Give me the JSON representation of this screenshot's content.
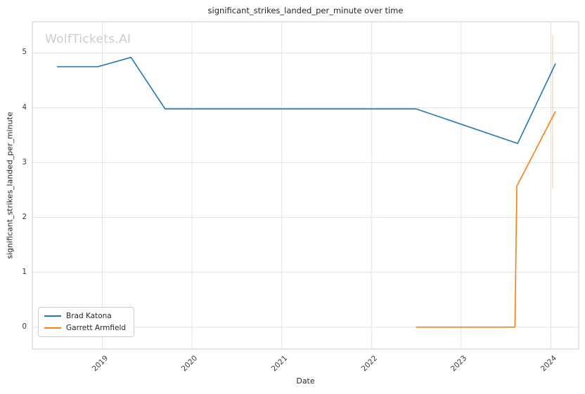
{
  "watermark": "WolfTickets.AI",
  "chart_data": {
    "type": "line",
    "title": "significant_strikes_landed_per_minute over time",
    "xlabel": "Date",
    "ylabel": "significant_strikes_landed_per_minute",
    "x_ticks": [
      2019,
      2020,
      2021,
      2022,
      2023,
      2024
    ],
    "y_ticks": [
      0,
      1,
      2,
      3,
      4,
      5
    ],
    "xlim": [
      2018.22,
      2024.31
    ],
    "ylim": [
      -0.4,
      5.57
    ],
    "grid": true,
    "legend_position": "lower left",
    "colors": {
      "grid": "#e3e3e3",
      "border": "#cccccc"
    },
    "series": [
      {
        "name": "Brad Katona",
        "color": "#1f77b4",
        "points": [
          [
            2018.5,
            4.75
          ],
          [
            2018.95,
            4.75
          ],
          [
            2019.32,
            4.92
          ],
          [
            2019.7,
            3.98
          ],
          [
            2022.5,
            3.98
          ],
          [
            2023.63,
            3.35
          ],
          [
            2024.05,
            4.8
          ]
        ]
      },
      {
        "name": "Garrett Armfield",
        "color": "#ff7f0e",
        "points": [
          [
            2022.5,
            0.0
          ],
          [
            2023.6,
            0.0
          ],
          [
            2023.62,
            2.57
          ],
          [
            2024.05,
            3.93
          ]
        ]
      }
    ],
    "error_bar": {
      "x": 2024.02,
      "y_low": 2.54,
      "y_high": 5.33,
      "color": "#ff7f0e",
      "opacity": 0.35
    }
  }
}
